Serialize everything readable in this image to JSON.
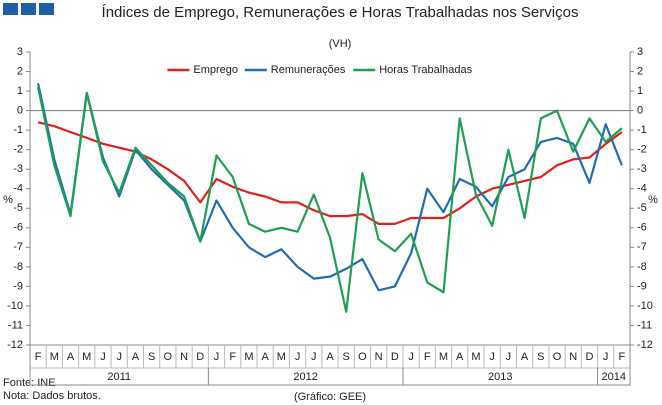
{
  "chart_data": {
    "type": "line",
    "title": "Índices de Emprego, Remunerações e Horas Trabalhadas nos Serviços",
    "subtitle": "(VH)",
    "ylabel": "%",
    "y2label": "%",
    "categories": [
      "F",
      "M",
      "A",
      "M",
      "J",
      "J",
      "A",
      "S",
      "O",
      "N",
      "D",
      "J",
      "F",
      "M",
      "A",
      "M",
      "J",
      "J",
      "A",
      "S",
      "O",
      "N",
      "D",
      "J",
      "F",
      "M",
      "A",
      "M",
      "J",
      "J",
      "A",
      "S",
      "O",
      "N",
      "D",
      "J",
      "F"
    ],
    "x_groups": [
      {
        "label": "2011",
        "count": 11
      },
      {
        "label": "2012",
        "count": 12
      },
      {
        "label": "2013",
        "count": 12
      },
      {
        "label": "2014",
        "count": 2
      }
    ],
    "series": [
      {
        "name": "Emprego",
        "color": "#e0201b",
        "values": [
          -0.6,
          -0.8,
          -1.1,
          -1.4,
          -1.7,
          -1.9,
          -2.1,
          -2.5,
          -3.0,
          -3.6,
          -4.7,
          -3.5,
          -3.9,
          -4.2,
          -4.4,
          -4.7,
          -4.7,
          -5.1,
          -5.4,
          -5.4,
          -5.3,
          -5.8,
          -5.8,
          -5.5,
          -5.5,
          -5.5,
          -5.0,
          -4.4,
          -4.0,
          -3.8,
          -3.6,
          -3.4,
          -2.8,
          -2.5,
          -2.4,
          -1.7,
          -1.1
        ]
      },
      {
        "name": "Remunerações",
        "color": "#1f6db5",
        "values": [
          1.4,
          -2.5,
          -5.3,
          0.9,
          -2.4,
          -4.4,
          -2.0,
          -3.0,
          -3.8,
          -4.6,
          -6.7,
          -4.6,
          -6.0,
          -7.0,
          -7.5,
          -7.1,
          -8.0,
          -8.6,
          -8.5,
          -8.1,
          -7.6,
          -9.2,
          -9.0,
          -7.3,
          -4.0,
          -5.2,
          -3.5,
          -3.9,
          -4.9,
          -3.4,
          -3.0,
          -1.6,
          -1.4,
          -1.7,
          -3.7,
          -0.7,
          -2.8
        ]
      },
      {
        "name": "Horas Trabalhadas",
        "color": "#1fa050",
        "values": [
          1.2,
          -2.8,
          -5.4,
          0.9,
          -2.6,
          -4.2,
          -1.9,
          -2.8,
          -3.7,
          -4.4,
          -6.7,
          -2.3,
          -3.4,
          -5.8,
          -6.2,
          -6.0,
          -6.2,
          -4.3,
          -6.5,
          -10.3,
          -3.2,
          -6.6,
          -7.2,
          -6.3,
          -8.8,
          -9.3,
          -0.4,
          -4.3,
          -5.9,
          -2.0,
          -5.5,
          -0.4,
          0.0,
          -2.1,
          -0.4,
          -1.6,
          -0.9
        ]
      }
    ],
    "ylim": [
      -12,
      3
    ],
    "yticks": [
      -12,
      -11,
      -10,
      -9,
      -8,
      -7,
      -6,
      -5,
      -4,
      -3,
      -2,
      -1,
      0,
      1,
      2,
      3
    ],
    "y2lim": [
      -12,
      3
    ],
    "y2ticks": [
      -12,
      -11,
      -10,
      -9,
      -8,
      -7,
      -6,
      -5,
      -4,
      -3,
      -2,
      -1,
      0,
      1,
      2,
      3
    ],
    "legend": "top",
    "notes": [
      "Fonte: INE",
      "Nota: Dados brutos."
    ],
    "credit": "(Gráfico: GEE)"
  }
}
